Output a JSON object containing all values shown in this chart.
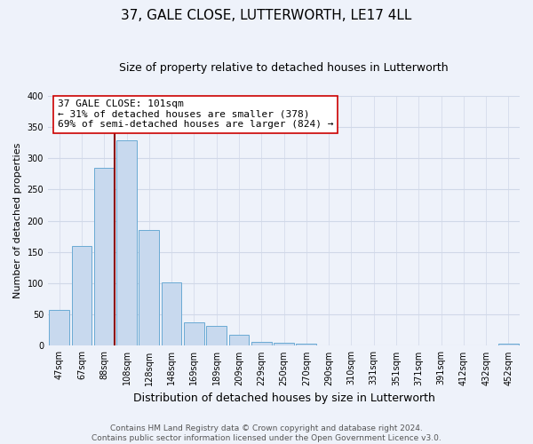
{
  "title": "37, GALE CLOSE, LUTTERWORTH, LE17 4LL",
  "subtitle": "Size of property relative to detached houses in Lutterworth",
  "xlabel": "Distribution of detached houses by size in Lutterworth",
  "ylabel": "Number of detached properties",
  "bar_labels": [
    "47sqm",
    "67sqm",
    "88sqm",
    "108sqm",
    "128sqm",
    "148sqm",
    "169sqm",
    "189sqm",
    "209sqm",
    "229sqm",
    "250sqm",
    "270sqm",
    "290sqm",
    "310sqm",
    "331sqm",
    "351sqm",
    "371sqm",
    "391sqm",
    "412sqm",
    "432sqm",
    "452sqm"
  ],
  "bar_values": [
    57,
    160,
    284,
    328,
    185,
    102,
    37,
    32,
    18,
    6,
    5,
    3,
    0,
    0,
    0,
    0,
    0,
    0,
    0,
    0,
    3
  ],
  "bar_color": "#c8d9ee",
  "bar_edge_color": "#6aaad4",
  "property_line_color": "#8b0000",
  "annotation_title": "37 GALE CLOSE: 101sqm",
  "annotation_line1": "← 31% of detached houses are smaller (378)",
  "annotation_line2": "69% of semi-detached houses are larger (824) →",
  "annotation_box_color": "#ffffff",
  "annotation_box_edge_color": "#cc0000",
  "ylim": [
    0,
    400
  ],
  "yticks": [
    0,
    50,
    100,
    150,
    200,
    250,
    300,
    350,
    400
  ],
  "footer_line1": "Contains HM Land Registry data © Crown copyright and database right 2024.",
  "footer_line2": "Contains public sector information licensed under the Open Government Licence v3.0.",
  "title_fontsize": 11,
  "subtitle_fontsize": 9,
  "xlabel_fontsize": 9,
  "ylabel_fontsize": 8,
  "tick_fontsize": 7,
  "annotation_fontsize": 8,
  "footer_fontsize": 6.5,
  "background_color": "#eef2fa",
  "grid_color": "#d0d8e8"
}
